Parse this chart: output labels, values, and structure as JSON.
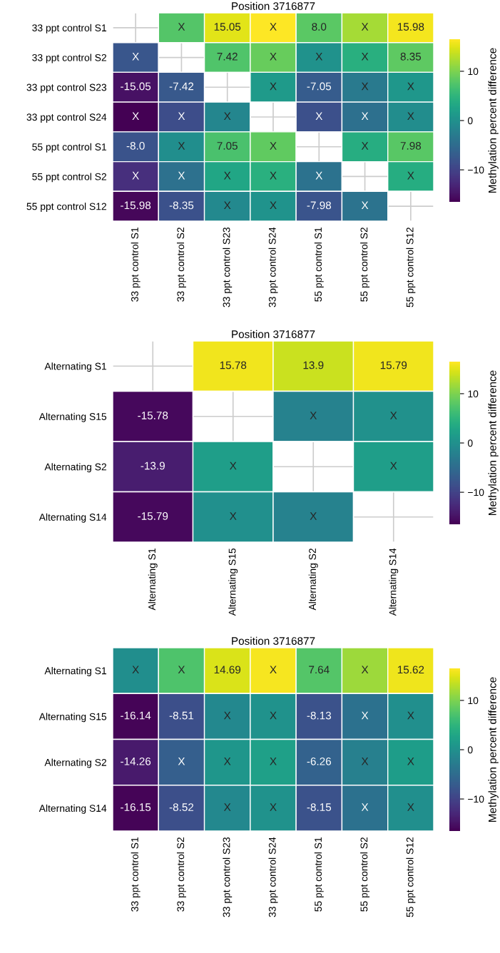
{
  "chart_data": [
    {
      "type": "heatmap",
      "title": "Position 3716877",
      "clabel": "Methylation percent difference",
      "categories": [
        "33 ppt control S1",
        "33 ppt control S2",
        "33 ppt control S23",
        "33 ppt control S24",
        "55 ppt control S1",
        "55 ppt control S2",
        "55 ppt control S12"
      ],
      "y_categories": [
        "33 ppt control S1",
        "33 ppt control S2",
        "33 ppt control S23",
        "33 ppt control S24",
        "55 ppt control S1",
        "55 ppt control S2",
        "55 ppt control S12"
      ],
      "cells": [
        [
          null,
          7.63,
          15.05,
          16.4,
          8.0,
          12.0,
          15.98
        ],
        [
          -7.63,
          null,
          7.42,
          8.77,
          0.37,
          4.37,
          8.35
        ],
        [
          -15.05,
          -7.42,
          null,
          1.35,
          -7.05,
          -3.05,
          0.93
        ],
        [
          -16.4,
          -8.77,
          -1.35,
          null,
          -8.4,
          -4.4,
          -0.42
        ],
        [
          -8.0,
          -0.37,
          7.05,
          8.4,
          null,
          4.0,
          7.98
        ],
        [
          -12.0,
          -4.37,
          3.05,
          4.4,
          -4.0,
          null,
          3.98
        ],
        [
          -15.98,
          -8.35,
          -0.93,
          0.42,
          -7.98,
          -3.98,
          null
        ]
      ],
      "cell_labels": [
        [
          null,
          "X",
          "15.05",
          "X",
          "8.0",
          "X",
          "15.98"
        ],
        [
          "X",
          null,
          "7.42",
          "X",
          "X",
          "X",
          "8.35"
        ],
        [
          "-15.05",
          "-7.42",
          null,
          "X",
          "-7.05",
          "X",
          "X"
        ],
        [
          "X",
          "X",
          "X",
          null,
          "X",
          "X",
          "X"
        ],
        [
          "-8.0",
          "X",
          "7.05",
          "X",
          null,
          "X",
          "7.98"
        ],
        [
          "X",
          "X",
          "X",
          "X",
          "X",
          null,
          "X"
        ],
        [
          "-15.98",
          "-8.35",
          "X",
          "X",
          "-7.98",
          "X",
          null
        ]
      ],
      "clim": [
        -16.5,
        16.5
      ],
      "cticks": [
        -10,
        0,
        10
      ],
      "grid": true
    },
    {
      "type": "heatmap",
      "title": "Position 3716877",
      "clabel": "Methylation percent difference",
      "categories": [
        "Alternating S1",
        "Alternating S15",
        "Alternating S2",
        "Alternating S14"
      ],
      "y_categories": [
        "Alternating S1",
        "Alternating S15",
        "Alternating S2",
        "Alternating S14"
      ],
      "cells": [
        [
          null,
          15.78,
          13.9,
          15.79
        ],
        [
          -15.78,
          null,
          -1.88,
          0.01
        ],
        [
          -13.9,
          1.88,
          null,
          1.89
        ],
        [
          -15.79,
          -0.01,
          -1.89,
          null
        ]
      ],
      "cell_labels": [
        [
          null,
          "15.78",
          "13.9",
          "15.79"
        ],
        [
          "-15.78",
          null,
          "X",
          "X"
        ],
        [
          "-13.9",
          "X",
          null,
          "X"
        ],
        [
          "-15.79",
          "X",
          "X",
          null
        ]
      ],
      "clim": [
        -16.5,
        16.5
      ],
      "cticks": [
        -10,
        0,
        10
      ],
      "grid": true
    },
    {
      "type": "heatmap",
      "title": "Position 3716877",
      "clabel": "Methylation percent difference",
      "categories": [
        "33 ppt control S1",
        "33 ppt control S2",
        "33 ppt control S23",
        "33 ppt control S24",
        "55 ppt control S1",
        "55 ppt control S2",
        "55 ppt control S12"
      ],
      "y_categories": [
        "Alternating S1",
        "Alternating S15",
        "Alternating S2",
        "Alternating S14"
      ],
      "cells": [
        [
          -0.36,
          7.27,
          14.69,
          16.04,
          7.64,
          11.64,
          15.62
        ],
        [
          -16.14,
          -8.51,
          -1.09,
          0.26,
          -8.13,
          -4.14,
          -0.16
        ],
        [
          -14.26,
          -6.63,
          0.79,
          2.14,
          -6.26,
          -2.26,
          1.72
        ],
        [
          -16.15,
          -8.52,
          -1.1,
          0.25,
          -8.15,
          -4.15,
          -0.17
        ]
      ],
      "cell_labels": [
        [
          "X",
          "X",
          "14.69",
          "X",
          "7.64",
          "X",
          "15.62"
        ],
        [
          "-16.14",
          "-8.51",
          "X",
          "X",
          "-8.13",
          "X",
          "X"
        ],
        [
          "-14.26",
          "X",
          "X",
          "X",
          "-6.26",
          "X",
          "X"
        ],
        [
          "-16.15",
          "-8.52",
          "X",
          "X",
          "-8.15",
          "X",
          "X"
        ]
      ],
      "clim": [
        -16.5,
        16.5
      ],
      "cticks": [
        -10,
        0,
        10
      ],
      "grid": true
    }
  ]
}
